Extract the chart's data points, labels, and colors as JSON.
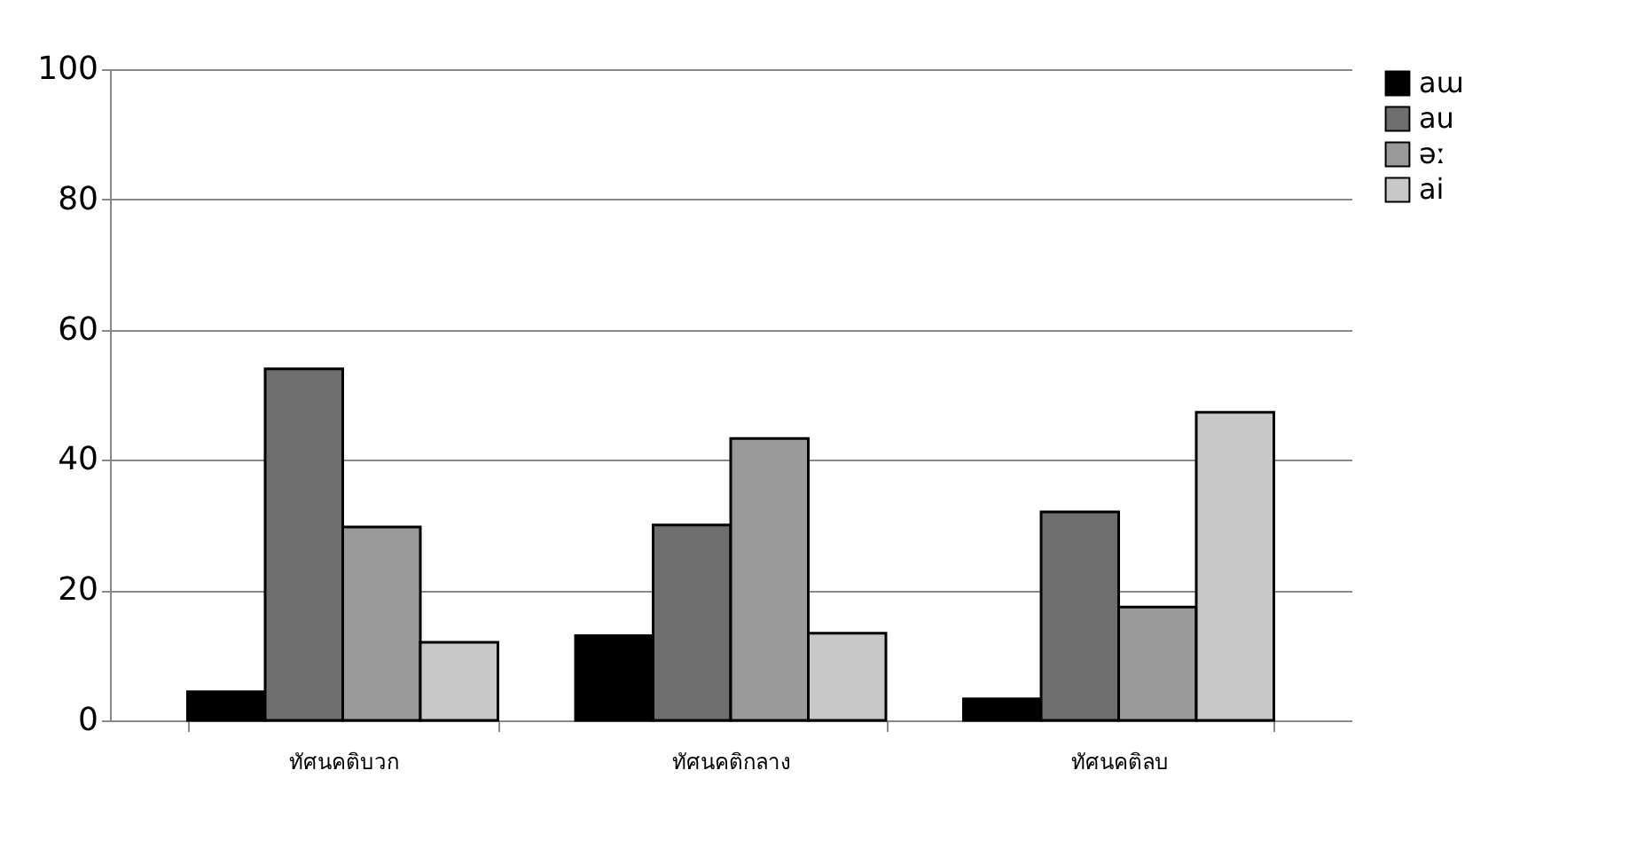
{
  "chart_data": {
    "type": "bar",
    "categories": [
      "ทัศนคติบวก",
      "ทัศนคติกลาง",
      "ทัศนคติลบ"
    ],
    "series": [
      {
        "name": "aɯ",
        "color": "#000000",
        "values": [
          4.4,
          13,
          3.3
        ]
      },
      {
        "name": "au",
        "color": "#6e6e6e",
        "values": [
          54,
          30,
          32
        ]
      },
      {
        "name": "əː",
        "color": "#9a9a9a",
        "values": [
          29.7,
          43.3,
          17.4
        ]
      },
      {
        "name": "ai",
        "color": "#c8c8c8",
        "values": [
          12,
          13.4,
          47.3
        ]
      }
    ],
    "ylim": [
      0,
      100
    ],
    "yticks": [
      0,
      20,
      40,
      60,
      80,
      100
    ],
    "grid": "y",
    "legend": "right"
  }
}
